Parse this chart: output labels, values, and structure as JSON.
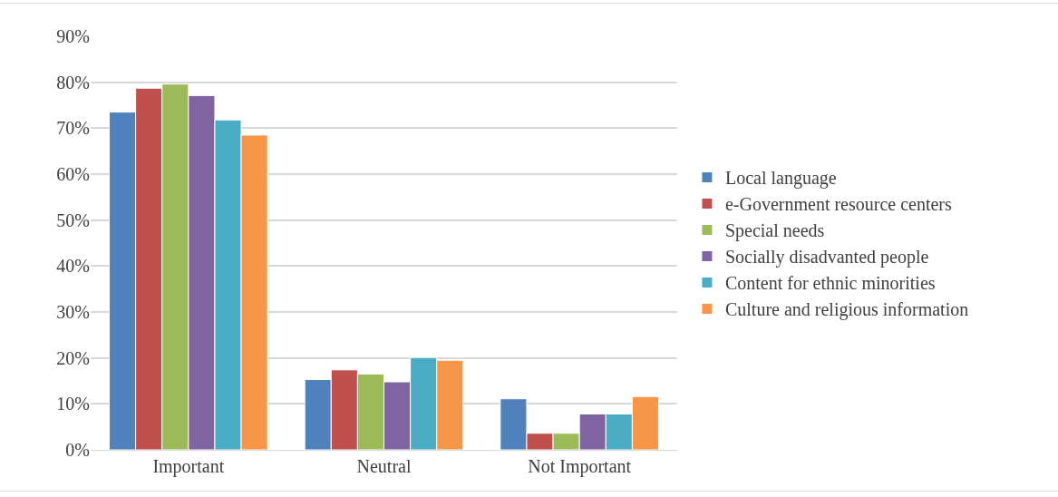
{
  "chart_data": {
    "type": "bar",
    "categories": [
      "Important",
      "Neutral",
      "Not Important"
    ],
    "series": [
      {
        "name": "Local language",
        "color": "#4f81bd",
        "values": [
          73.5,
          15.3,
          11.1
        ]
      },
      {
        "name": "e-Government resource centers",
        "color": "#c0504d",
        "values": [
          78.7,
          17.4,
          3.6
        ]
      },
      {
        "name": "Special needs",
        "color": "#9bbb59",
        "values": [
          79.6,
          16.5,
          3.6
        ]
      },
      {
        "name": "Socially disadvanted people",
        "color": "#8064a2",
        "values": [
          77.1,
          14.8,
          7.8
        ]
      },
      {
        "name": "Content for ethnic minorities",
        "color": "#4bacc6",
        "values": [
          71.8,
          20.1,
          7.8
        ]
      },
      {
        "name": "Culture and religious information",
        "color": "#f79646",
        "values": [
          68.5,
          19.5,
          11.6
        ]
      }
    ],
    "ylim": [
      0,
      90
    ],
    "yticks": [
      {
        "value": 0,
        "label": "0%"
      },
      {
        "value": 10,
        "label": "10%"
      },
      {
        "value": 20,
        "label": "20%"
      },
      {
        "value": 30,
        "label": "30%"
      },
      {
        "value": 40,
        "label": "40%"
      },
      {
        "value": 50,
        "label": "50%"
      },
      {
        "value": 60,
        "label": "60%"
      },
      {
        "value": 70,
        "label": "70%"
      },
      {
        "value": 80,
        "label": "80%"
      },
      {
        "value": 90,
        "label": "90%"
      }
    ],
    "grid": "y",
    "legend": "right"
  }
}
